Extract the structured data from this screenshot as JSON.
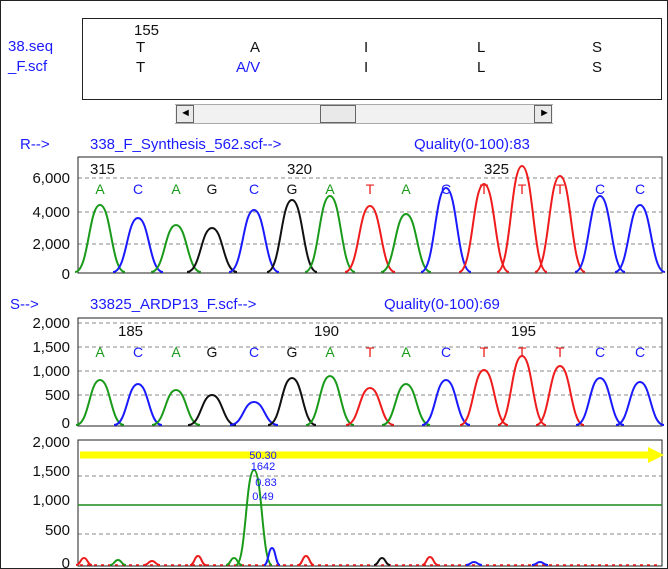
{
  "alignment": {
    "ref_file": "38.seq",
    "sample_file": "_F.scf",
    "position": "155",
    "ref_row": [
      "T",
      "A",
      "I",
      "L",
      "S"
    ],
    "sample_row": [
      "T",
      "A/V",
      "I",
      "L",
      "S"
    ]
  },
  "scrollbar": {
    "left_arrow": "◄",
    "right_arrow": "►"
  },
  "track_r": {
    "prefix": "R-->",
    "file": "338_F_Synthesis_562.scf-->",
    "quality": "Quality(0-100):83",
    "positions": [
      "315",
      "320",
      "325"
    ],
    "y_ticks": [
      "6,000",
      "4,000",
      "2,000",
      "0"
    ],
    "bases": [
      "A",
      "C",
      "A",
      "G",
      "C",
      "G",
      "A",
      "T",
      "A",
      "C",
      "T",
      "T",
      "T",
      "C",
      "C"
    ]
  },
  "track_s": {
    "prefix": "S-->",
    "file": "33825_ARDP13_F.scf-->",
    "quality": "Quality(0-100):69",
    "positions": [
      "185",
      "190",
      "195"
    ],
    "y_ticks": [
      "2,000",
      "1,500",
      "1,000",
      "500",
      "0"
    ],
    "bases": [
      "A",
      "C",
      "A",
      "G",
      "C",
      "G",
      "A",
      "T",
      "A",
      "C",
      "T",
      "T",
      "T",
      "C",
      "C"
    ]
  },
  "track_diff": {
    "y_ticks": [
      "2,000",
      "1,500",
      "1,000",
      "500",
      "0"
    ],
    "peak_labels": [
      "50.30",
      "1642",
      "0.83",
      "0.49"
    ]
  },
  "colors": {
    "A": "#1a9a1a",
    "C": "#1a1aff",
    "G": "#111111",
    "T": "#ee1c1c",
    "link": "#1a1aff",
    "threshold": "#1a8a1a",
    "marker": "#ffff00"
  }
}
